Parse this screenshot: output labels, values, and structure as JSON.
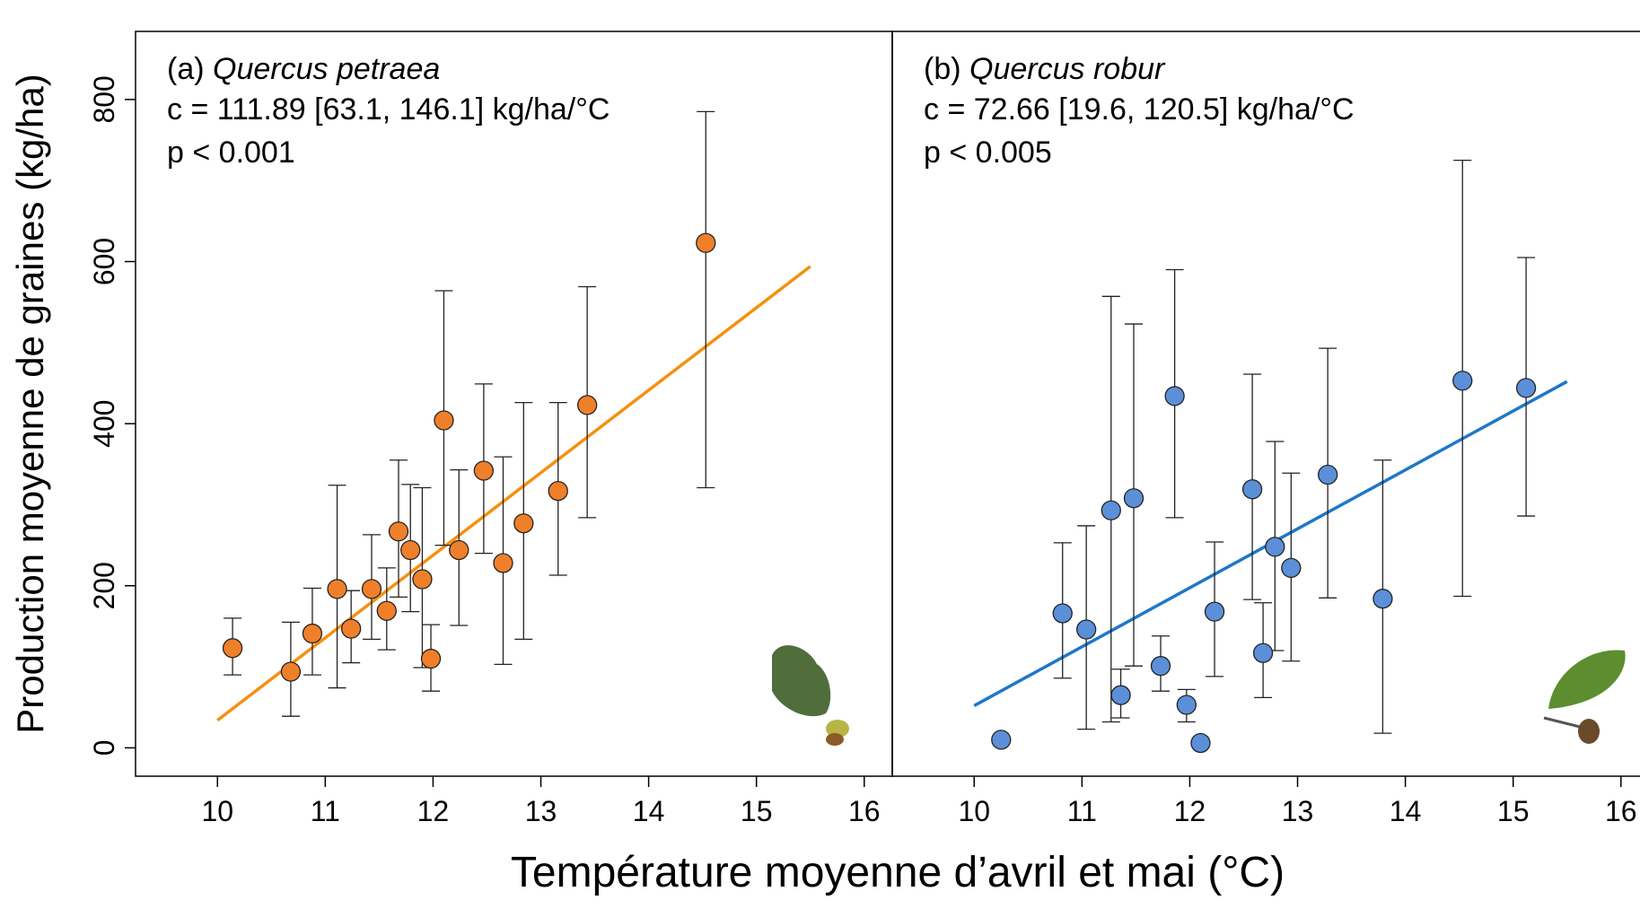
{
  "xlabel": "Température moyenne d’avril et mai (°C)",
  "ylabel": "Production moyenne de graines (kg/ha)",
  "chart_data": [
    {
      "type": "scatter",
      "label": "(a)",
      "species": "Quercus petraea",
      "annotations": [
        "c = 111.89 [63.1, 146.1] kg/ha/°C",
        "p < 0.001"
      ],
      "xlim": [
        9.24,
        16.26
      ],
      "ylim": [
        -35,
        884
      ],
      "xticks": [
        10,
        11,
        12,
        13,
        14,
        15,
        16
      ],
      "yticks": [
        0,
        200,
        400,
        600,
        800
      ],
      "series": [
        {
          "color": "#f07f2a",
          "x": [
            10.14,
            10.68,
            10.88,
            11.11,
            11.24,
            11.43,
            11.57,
            11.68,
            11.79,
            11.9,
            11.98,
            12.1,
            12.24,
            12.47,
            12.65,
            12.84,
            13.16,
            13.43,
            14.53
          ],
          "values": [
            123,
            94,
            141,
            196,
            147,
            196,
            169,
            267,
            244,
            208,
            110,
            404,
            244,
            342,
            228,
            277,
            317,
            423,
            623
          ],
          "lower": [
            90,
            39,
            90,
            74,
            105,
            134,
            121,
            186,
            168,
            99,
            70,
            250,
            151,
            240,
            103,
            134,
            213,
            284,
            321
          ],
          "upper": [
            160,
            155,
            197,
            324,
            194,
            263,
            222,
            355,
            325,
            321,
            152,
            564,
            343,
            449,
            359,
            426,
            426,
            569,
            785
          ]
        }
      ],
      "fit": {
        "color": "#f5900f",
        "x": [
          10,
          15.5
        ],
        "y": [
          34,
          594
        ]
      }
    },
    {
      "type": "scatter",
      "label": "(b)",
      "species": "Quercus robur",
      "annotations": [
        "c = 72.66 [19.6, 120.5] kg/ha/°C",
        "p < 0.005"
      ],
      "xlim": [
        9.24,
        16.26
      ],
      "ylim": [
        -35,
        884
      ],
      "xticks": [
        10,
        11,
        12,
        13,
        14,
        15,
        16
      ],
      "series": [
        {
          "color": "#5b8fd8",
          "x": [
            10.25,
            10.82,
            11.04,
            11.27,
            11.36,
            11.48,
            11.73,
            11.86,
            11.97,
            12.1,
            12.23,
            12.58,
            12.68,
            12.79,
            12.94,
            13.28,
            13.79,
            14.53,
            15.12
          ],
          "values": [
            10,
            166,
            146,
            293,
            65,
            308,
            101,
            434,
            53,
            6,
            168,
            319,
            117,
            248,
            222,
            337,
            184,
            453,
            444
          ],
          "lower": [
            null,
            86,
            23,
            32,
            37,
            101,
            70,
            284,
            32,
            null,
            88,
            183,
            62,
            120,
            107,
            185,
            18,
            187,
            286
          ],
          "upper": [
            null,
            253,
            274,
            557,
            97,
            523,
            138,
            590,
            72,
            null,
            254,
            461,
            179,
            378,
            339,
            493,
            355,
            725,
            605
          ]
        }
      ],
      "fit": {
        "color": "#1f77c9",
        "x": [
          10,
          15.5
        ],
        "y": [
          52,
          452
        ]
      }
    }
  ]
}
